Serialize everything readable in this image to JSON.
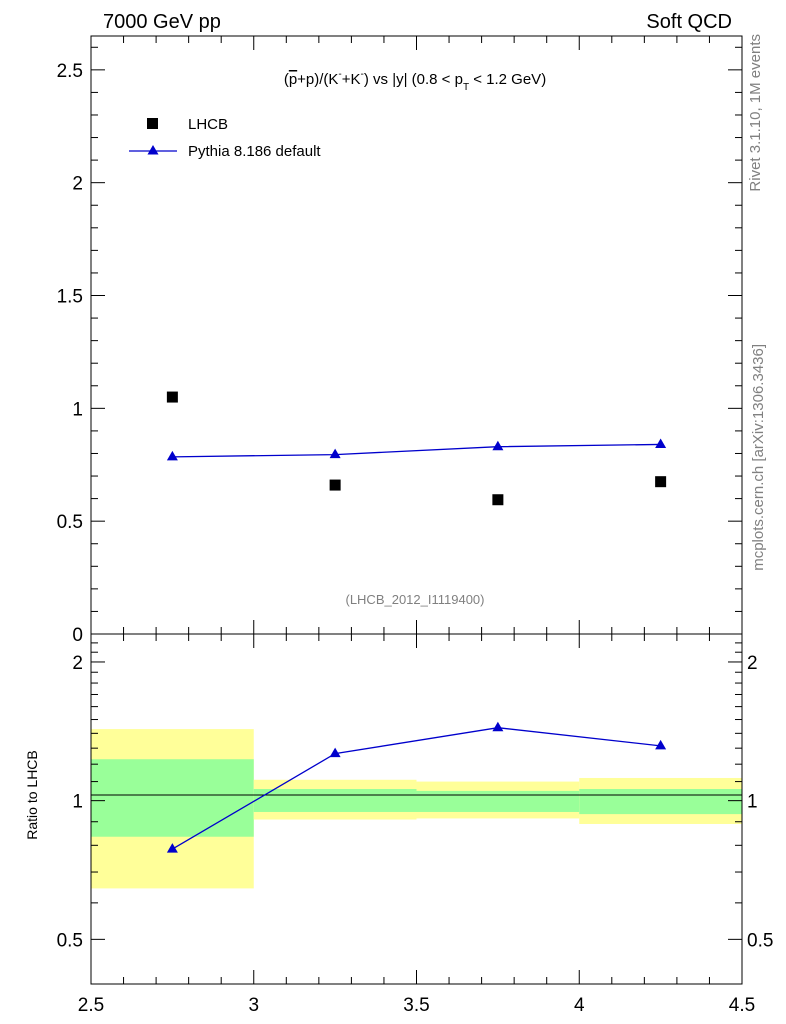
{
  "header": {
    "energy_label": "7000 GeV pp",
    "category_label": "Soft QCD"
  },
  "side_labels": {
    "rivet": "Rivet 3.1.10,  1M events",
    "mcplots": "mcplots.cern.ch [arXiv:1306.3436]"
  },
  "chart_data": [
    {
      "type": "scatter",
      "panel": "main",
      "title": "(p̄+p)/(K⁻+K⁻) vs |y| (0.8 < p_T < 1.2 GeV)",
      "title_parts": {
        "prefix": "(",
        "pbar": "p",
        "mid": "+p)/(K",
        "sup1": "-",
        "mid2": "+K",
        "sup2": "-",
        "mid3": ") vs |y| (0.8 < p",
        "sub": "T",
        "suffix": " < 1.2 GeV)"
      },
      "watermark": "(LHCB_2012_I1119400)",
      "xlim": [
        2.5,
        4.5
      ],
      "ylim": [
        0,
        2.65
      ],
      "ytick_values": [
        0,
        0.5,
        1,
        1.5,
        2,
        2.5
      ],
      "ytick_labels": [
        "0",
        "0.5",
        "1",
        "1.5",
        "2",
        "2.5"
      ],
      "legend": {
        "placement": "top-left",
        "entries": [
          {
            "label": "LHCB",
            "marker": "square",
            "color": "#000000"
          },
          {
            "label": "Pythia 8.186 default",
            "marker": "triangle",
            "color": "#0000cc"
          }
        ]
      },
      "series": [
        {
          "name": "LHCB",
          "x": [
            2.75,
            3.25,
            3.75,
            4.25
          ],
          "values": [
            1.05,
            0.66,
            0.595,
            0.675
          ],
          "color": "#000000",
          "marker": "square"
        },
        {
          "name": "Pythia 8.186 default",
          "x": [
            2.75,
            3.25,
            3.75,
            4.25
          ],
          "values": [
            0.785,
            0.795,
            0.83,
            0.84
          ],
          "color": "#0000cc",
          "marker": "triangle"
        }
      ]
    },
    {
      "type": "line",
      "panel": "ratio",
      "ylabel": "Ratio to LHCB",
      "xlim": [
        2.5,
        4.5
      ],
      "ylim": [
        0.4,
        2.3
      ],
      "ytick_values": [
        0.5,
        1,
        2
      ],
      "ytick_labels": [
        "0.5",
        "1",
        "2"
      ],
      "xtick_values": [
        2.5,
        3,
        3.5,
        4,
        4.5
      ],
      "xtick_labels": [
        "2.5",
        "3",
        "3.5",
        "4",
        "4.5"
      ],
      "bands": [
        {
          "x0": 2.5,
          "x1": 3.0,
          "stat_lo": 0.835,
          "stat_hi": 1.23,
          "tot_lo": 0.645,
          "tot_hi": 1.43
        },
        {
          "x0": 3.0,
          "x1": 3.5,
          "stat_lo": 0.945,
          "stat_hi": 1.06,
          "tot_lo": 0.91,
          "tot_hi": 1.11
        },
        {
          "x0": 3.5,
          "x1": 4.0,
          "stat_lo": 0.945,
          "stat_hi": 1.05,
          "tot_lo": 0.915,
          "tot_hi": 1.1
        },
        {
          "x0": 4.0,
          "x1": 4.5,
          "stat_lo": 0.935,
          "stat_hi": 1.06,
          "tot_lo": 0.89,
          "tot_hi": 1.12
        }
      ],
      "band_colors": {
        "stat": "#99ff99",
        "total": "#ffff99"
      },
      "series": [
        {
          "name": "Pythia 8.186 default",
          "x": [
            2.75,
            3.25,
            3.75,
            4.25
          ],
          "values": [
            0.785,
            1.265,
            1.44,
            1.315
          ],
          "color": "#0000cc",
          "marker": "triangle"
        }
      ],
      "reference_line": 1
    }
  ]
}
